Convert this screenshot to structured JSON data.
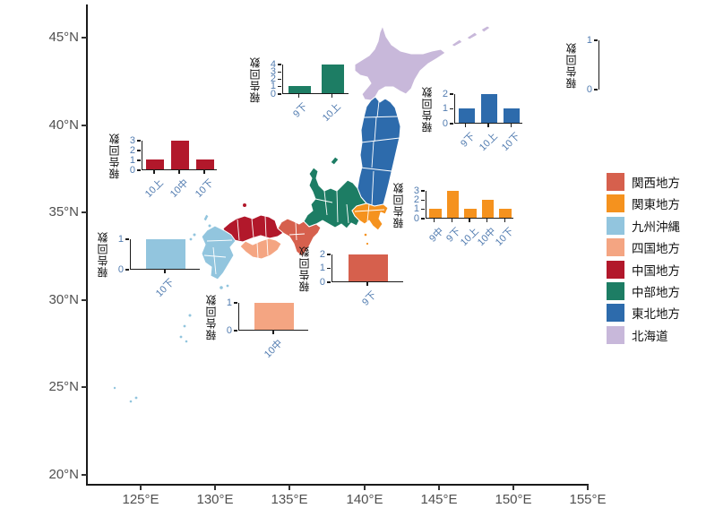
{
  "figure": {
    "kind": "map-with-bar-insets",
    "ylabel_common": "報告回数"
  },
  "axes": {
    "y_tick_labels": [
      "45°N",
      "40°N",
      "35°N",
      "30°N",
      "25°N",
      "20°N"
    ],
    "x_tick_labels": [
      "125°E",
      "130°E",
      "135°E",
      "140°E",
      "145°E",
      "150°E",
      "155°E"
    ]
  },
  "legend": {
    "items": [
      {
        "id": "kansai",
        "label": "関西地方",
        "color": "#d6604d"
      },
      {
        "id": "kanto",
        "label": "関東地方",
        "color": "#f5921e"
      },
      {
        "id": "kyushu",
        "label": "九州沖縄",
        "color": "#92c5de"
      },
      {
        "id": "shikoku",
        "label": "四国地方",
        "color": "#f4a582"
      },
      {
        "id": "chugoku",
        "label": "中国地方",
        "color": "#b2182b"
      },
      {
        "id": "chubu",
        "label": "中部地方",
        "color": "#1d7d64"
      },
      {
        "id": "tohoku",
        "label": "東北地方",
        "color": "#2d6bac"
      },
      {
        "id": "hokkaido",
        "label": "北海道",
        "color": "#c8b8da"
      }
    ]
  },
  "chart_data": [
    {
      "id": "chubu",
      "region": "中部地方",
      "type": "bar",
      "categories": [
        "9下",
        "10上"
      ],
      "values": [
        1,
        4
      ],
      "yticks": [
        0,
        1,
        2,
        3,
        4
      ],
      "ylim": [
        0,
        4
      ],
      "ylabel": "報告回数",
      "color": "#1d7d64"
    },
    {
      "id": "tohoku",
      "region": "東北地方",
      "type": "bar",
      "categories": [
        "9下",
        "10上",
        "10下"
      ],
      "values": [
        1,
        2,
        1
      ],
      "yticks": [
        0,
        1,
        2
      ],
      "ylim": [
        0,
        2
      ],
      "ylabel": "報告回数",
      "color": "#2d6bac"
    },
    {
      "id": "chugoku",
      "region": "中国地方",
      "type": "bar",
      "categories": [
        "10上",
        "10中",
        "10下"
      ],
      "values": [
        1,
        3,
        1
      ],
      "yticks": [
        0,
        1,
        2,
        3
      ],
      "ylim": [
        0,
        3
      ],
      "ylabel": "報告回数",
      "color": "#b2182b"
    },
    {
      "id": "kanto",
      "region": "関東地方",
      "type": "bar",
      "categories": [
        "9中",
        "9下",
        "10上",
        "10中",
        "10下"
      ],
      "values": [
        1,
        3,
        1,
        2,
        1
      ],
      "yticks": [
        0,
        1,
        2,
        3
      ],
      "ylim": [
        0,
        3
      ],
      "ylabel": "報告回数",
      "color": "#f5921e"
    },
    {
      "id": "kansai",
      "region": "関西地方",
      "type": "bar",
      "categories": [
        "9下"
      ],
      "values": [
        2
      ],
      "yticks": [
        0,
        1,
        2
      ],
      "ylim": [
        0,
        2
      ],
      "ylabel": "報告回数",
      "color": "#d6604d"
    },
    {
      "id": "shikoku",
      "region": "四国地方",
      "type": "bar",
      "categories": [
        "10中"
      ],
      "values": [
        1
      ],
      "yticks": [
        0,
        1
      ],
      "ylim": [
        0,
        1
      ],
      "ylabel": "報告回数",
      "color": "#f4a582"
    },
    {
      "id": "kyushu",
      "region": "九州沖縄",
      "type": "bar",
      "categories": [
        "10下"
      ],
      "values": [
        1
      ],
      "yticks": [
        0,
        1
      ],
      "ylim": [
        0,
        1
      ],
      "ylabel": "報告回数",
      "color": "#92c5de"
    },
    {
      "id": "hokkaido",
      "region": "北海道",
      "type": "bar",
      "categories": [],
      "values": [],
      "yticks": [
        0,
        1
      ],
      "ylim": [
        0,
        1
      ],
      "ylabel": "報告回数",
      "color": "#c8b8da"
    }
  ],
  "map": {
    "country": "Japan",
    "region_count": 8
  }
}
